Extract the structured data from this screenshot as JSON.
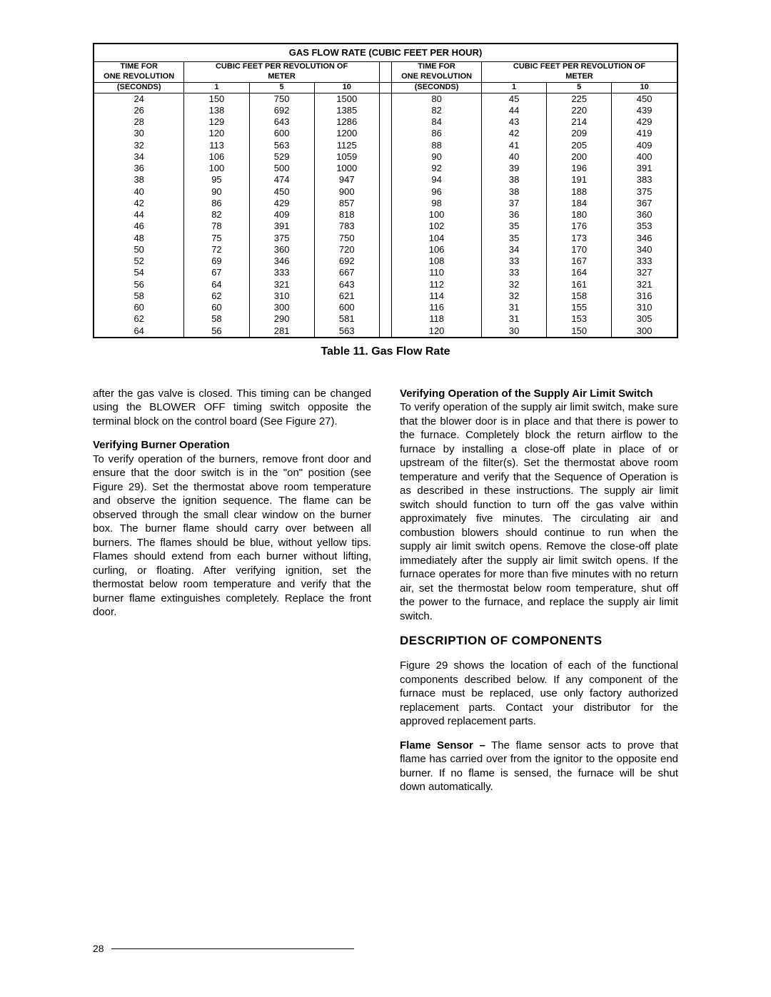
{
  "table": {
    "title": "GAS FLOW RATE (CUBIC FEET PER HOUR)",
    "time_hdr1": "TIME FOR",
    "time_hdr2": "ONE REVOLUTION",
    "time_hdr3": "(SECONDS)",
    "meter_hdr1": "CUBIC FEET PER REVOLUTION OF",
    "meter_hdr2": "METER",
    "cols": {
      "c1": "1",
      "c5": "5",
      "c10": "10"
    },
    "left_rows": [
      {
        "t": "24",
        "v1": "150",
        "v5": "750",
        "v10": "1500"
      },
      {
        "t": "26",
        "v1": "138",
        "v5": "692",
        "v10": "1385"
      },
      {
        "t": "28",
        "v1": "129",
        "v5": "643",
        "v10": "1286"
      },
      {
        "t": "30",
        "v1": "120",
        "v5": "600",
        "v10": "1200"
      },
      {
        "t": "32",
        "v1": "113",
        "v5": "563",
        "v10": "1125"
      },
      {
        "t": "34",
        "v1": "106",
        "v5": "529",
        "v10": "1059"
      },
      {
        "t": "36",
        "v1": "100",
        "v5": "500",
        "v10": "1000"
      },
      {
        "t": "38",
        "v1": "95",
        "v5": "474",
        "v10": "947"
      },
      {
        "t": "40",
        "v1": "90",
        "v5": "450",
        "v10": "900"
      },
      {
        "t": "42",
        "v1": "86",
        "v5": "429",
        "v10": "857"
      },
      {
        "t": "44",
        "v1": "82",
        "v5": "409",
        "v10": "818"
      },
      {
        "t": "46",
        "v1": "78",
        "v5": "391",
        "v10": "783"
      },
      {
        "t": "48",
        "v1": "75",
        "v5": "375",
        "v10": "750"
      },
      {
        "t": "50",
        "v1": "72",
        "v5": "360",
        "v10": "720"
      },
      {
        "t": "52",
        "v1": "69",
        "v5": "346",
        "v10": "692"
      },
      {
        "t": "54",
        "v1": "67",
        "v5": "333",
        "v10": "667"
      },
      {
        "t": "56",
        "v1": "64",
        "v5": "321",
        "v10": "643"
      },
      {
        "t": "58",
        "v1": "62",
        "v5": "310",
        "v10": "621"
      },
      {
        "t": "60",
        "v1": "60",
        "v5": "300",
        "v10": "600"
      },
      {
        "t": "62",
        "v1": "58",
        "v5": "290",
        "v10": "581"
      },
      {
        "t": "64",
        "v1": "56",
        "v5": "281",
        "v10": "563"
      }
    ],
    "right_rows": [
      {
        "t": "80",
        "v1": "45",
        "v5": "225",
        "v10": "450"
      },
      {
        "t": "82",
        "v1": "44",
        "v5": "220",
        "v10": "439"
      },
      {
        "t": "84",
        "v1": "43",
        "v5": "214",
        "v10": "429"
      },
      {
        "t": "86",
        "v1": "42",
        "v5": "209",
        "v10": "419"
      },
      {
        "t": "88",
        "v1": "41",
        "v5": "205",
        "v10": "409"
      },
      {
        "t": "90",
        "v1": "40",
        "v5": "200",
        "v10": "400"
      },
      {
        "t": "92",
        "v1": "39",
        "v5": "196",
        "v10": "391"
      },
      {
        "t": "94",
        "v1": "38",
        "v5": "191",
        "v10": "383"
      },
      {
        "t": "96",
        "v1": "38",
        "v5": "188",
        "v10": "375"
      },
      {
        "t": "98",
        "v1": "37",
        "v5": "184",
        "v10": "367"
      },
      {
        "t": "100",
        "v1": "36",
        "v5": "180",
        "v10": "360"
      },
      {
        "t": "102",
        "v1": "35",
        "v5": "176",
        "v10": "353"
      },
      {
        "t": "104",
        "v1": "35",
        "v5": "173",
        "v10": "346"
      },
      {
        "t": "106",
        "v1": "34",
        "v5": "170",
        "v10": "340"
      },
      {
        "t": "108",
        "v1": "33",
        "v5": "167",
        "v10": "333"
      },
      {
        "t": "110",
        "v1": "33",
        "v5": "164",
        "v10": "327"
      },
      {
        "t": "112",
        "v1": "32",
        "v5": "161",
        "v10": "321"
      },
      {
        "t": "114",
        "v1": "32",
        "v5": "158",
        "v10": "316"
      },
      {
        "t": "116",
        "v1": "31",
        "v5": "155",
        "v10": "310"
      },
      {
        "t": "118",
        "v1": "31",
        "v5": "153",
        "v10": "305"
      },
      {
        "t": "120",
        "v1": "30",
        "v5": "150",
        "v10": "300"
      }
    ],
    "caption": "Table 11.  Gas Flow Rate"
  },
  "body": {
    "p1": "after the gas valve is closed. This timing can be changed using the BLOWER OFF timing switch opposite the terminal block on the control board (See Figure 27).",
    "h_burner": "Verifying Burner Operation",
    "p_burner": "To verify operation of the burners, remove front door and ensure that the door switch is in the \"on\" position (see Figure 29). Set the thermostat above room temperature and observe the ignition sequence. The flame can be observed through the small clear window on the burner box. The burner flame should carry over between all burners. The flames should be blue, without yellow tips. Flames should extend from each burner without lifting, curling, or floating. After verifying ignition, set the thermostat below room temperature and verify that the burner flame extinguishes completely. Replace the front door.",
    "h_supply": "Verifying Operation of the Supply Air Limit Switch",
    "p_supply": "To verify operation of the supply air limit switch, make sure that the blower door is in place and that there is power to the furnace.  Completely block the return airflow to the furnace by installing a close-off plate in place of or upstream of the filter(s). Set the thermostat above room temperature and verify that the Sequence of Operation is as described in these instructions. The supply air  limit switch should function to turn off the gas valve within approximately five minutes. The circulating air and combustion blowers should continue to run when the supply air limit switch opens. Remove the close-off plate immediately after the supply air limit switch opens. If the furnace operates for more than five minutes with no return air, set the thermostat below room temperature, shut off the power to the furnace, and replace the supply air limit switch.",
    "h_desc": "DESCRIPTION OF COMPONENTS",
    "p_desc1": "Figure 29 shows the location of each of the functional components described below. If any component of the furnace must be replaced, use only factory authorized replacement parts. Contact your distributor for the approved replacement parts.",
    "flame_lead": "Flame Sensor –",
    "p_flame": " The flame sensor acts to prove that flame has carried over from the ignitor to the opposite end burner. If no flame is sensed, the furnace will be shut down automatically."
  },
  "page_number": "28"
}
